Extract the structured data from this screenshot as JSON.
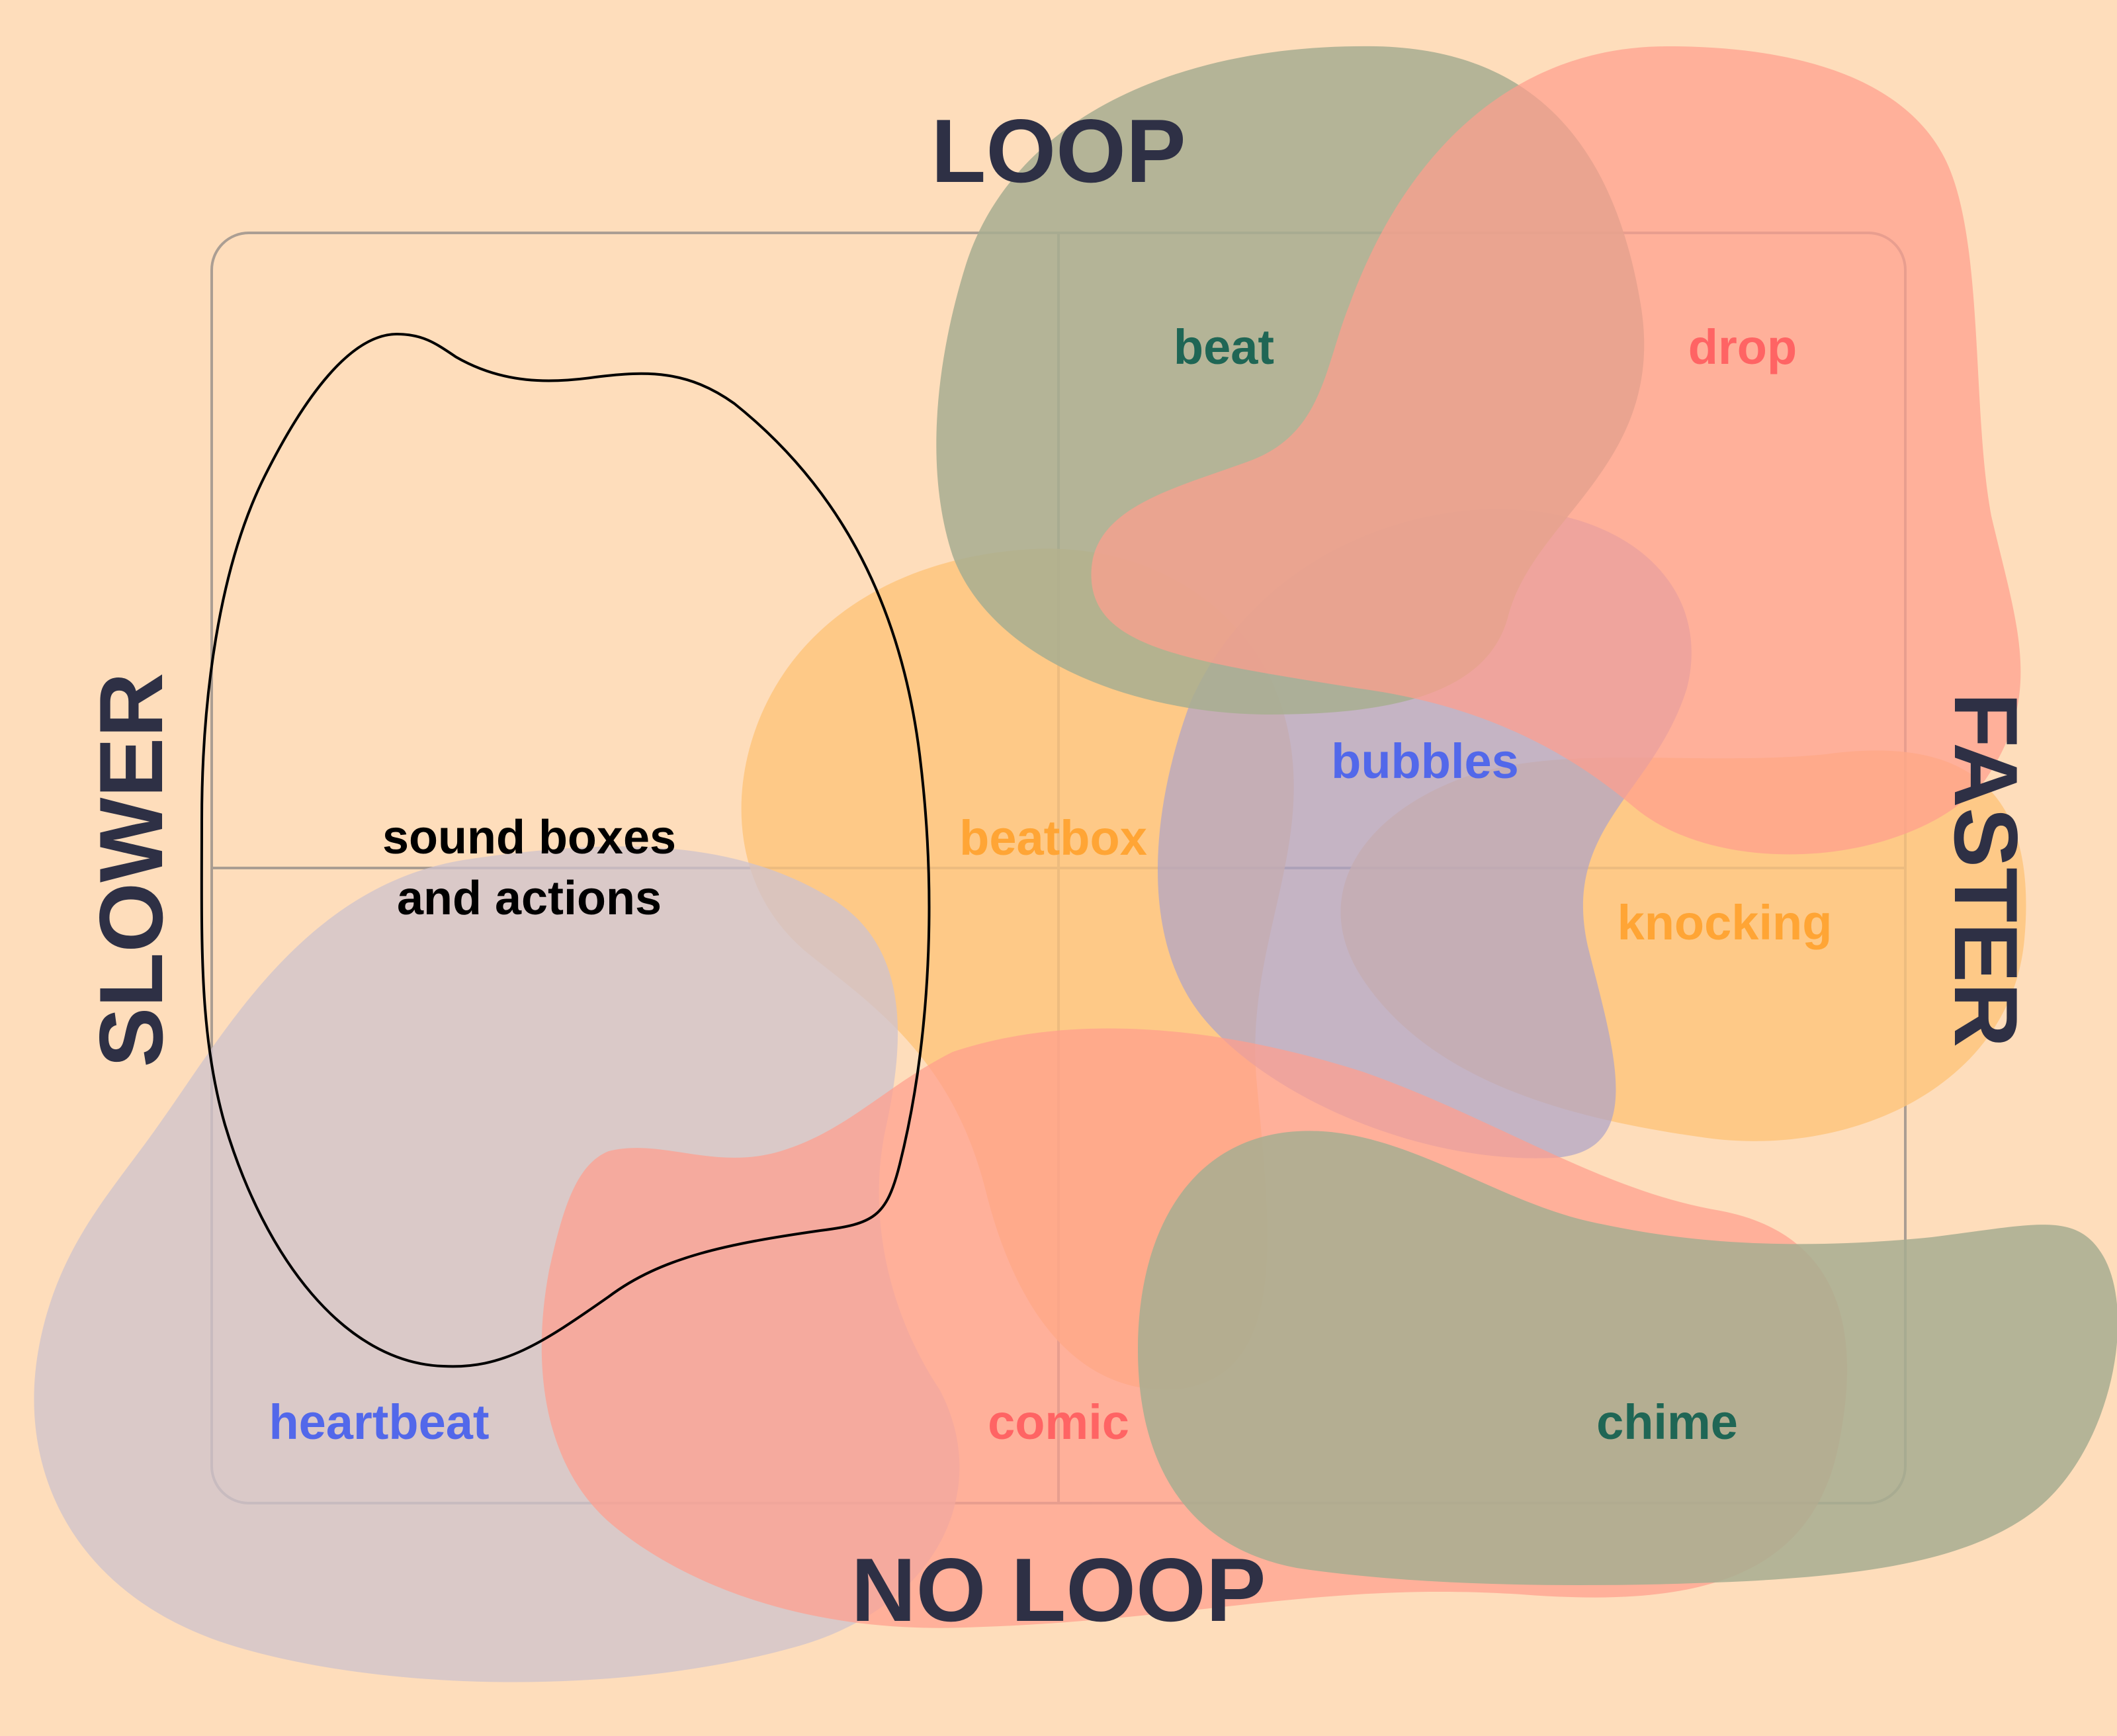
{
  "colors": {
    "background": "#FEDDBB",
    "axis_text": "#2E3045",
    "green_blob": "#A8AD90",
    "red_blob": "#FF9E8E",
    "orange_blob": "#FEC47A",
    "purple_blob": "#AFA4C8",
    "lilac_blob": "#CFC3CC",
    "green_text": "#1F6655",
    "red_text": "#FF6464",
    "orange_text": "#FFA535",
    "blue_text": "#5268EA",
    "frame": "#9C938C"
  },
  "axes": {
    "top": "LOOP",
    "bottom": "NO LOOP",
    "left": "SLOWER",
    "right": "FASTER"
  },
  "center": {
    "line1": "sound boxes",
    "line2": "and actions"
  },
  "sounds": [
    {
      "label": "beat",
      "color": "#1F6655"
    },
    {
      "label": "drop",
      "color": "#FF6464"
    },
    {
      "label": "bubbles",
      "color": "#5268EA"
    },
    {
      "label": "beatbox",
      "color": "#FFA535"
    },
    {
      "label": "knocking",
      "color": "#FFA535"
    },
    {
      "label": "heartbeat",
      "color": "#5268EA"
    },
    {
      "label": "comic",
      "color": "#FF6464"
    },
    {
      "label": "chime",
      "color": "#1F6655"
    }
  ]
}
